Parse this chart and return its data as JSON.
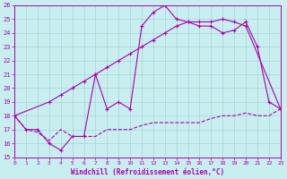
{
  "xlabel": "Windchill (Refroidissement éolien,°C)",
  "xlim": [
    0,
    23
  ],
  "ylim": [
    15,
    26
  ],
  "xticks": [
    0,
    1,
    2,
    3,
    4,
    5,
    6,
    7,
    8,
    9,
    10,
    11,
    12,
    13,
    14,
    15,
    16,
    17,
    18,
    19,
    20,
    21,
    22,
    23
  ],
  "yticks": [
    15,
    16,
    17,
    18,
    19,
    20,
    21,
    22,
    23,
    24,
    25,
    26
  ],
  "bg_color": "#c8eef0",
  "line_color": "#aa00aa",
  "line1_x": [
    0,
    1,
    2,
    3,
    4,
    5,
    6,
    7,
    8,
    9,
    10,
    11,
    12,
    13,
    14,
    15,
    16,
    17,
    18,
    19,
    20,
    21,
    22,
    23
  ],
  "line1_y": [
    18,
    17,
    17,
    16,
    15.5,
    16.5,
    16.5,
    21,
    18.5,
    19,
    18.5,
    24.5,
    25.5,
    26,
    25,
    24.8,
    24.5,
    24.5,
    24,
    24.2,
    24.8,
    23,
    19.0,
    18.5
  ],
  "line2_x": [
    0,
    3,
    4,
    5,
    6,
    7,
    8,
    9,
    10,
    11,
    12,
    13,
    14,
    15,
    16,
    17,
    18,
    19,
    20,
    23
  ],
  "line2_y": [
    18,
    19,
    19.5,
    20,
    20.5,
    21,
    21.5,
    22,
    22.5,
    23,
    23.5,
    24,
    24.5,
    24.8,
    24.8,
    24.8,
    25,
    24.8,
    24.5,
    18.5
  ],
  "line3_x": [
    0,
    1,
    2,
    3,
    4,
    5,
    6,
    7,
    8,
    9,
    10,
    11,
    12,
    13,
    14,
    15,
    16,
    17,
    18,
    19,
    20,
    21,
    22,
    23
  ],
  "line3_y": [
    18,
    17,
    16.8,
    16.2,
    17,
    16.5,
    16.5,
    16.5,
    17,
    17,
    17,
    17.3,
    17.5,
    17.5,
    17.5,
    17.5,
    17.5,
    17.8,
    18,
    18,
    18.2,
    18,
    18,
    18.5
  ]
}
